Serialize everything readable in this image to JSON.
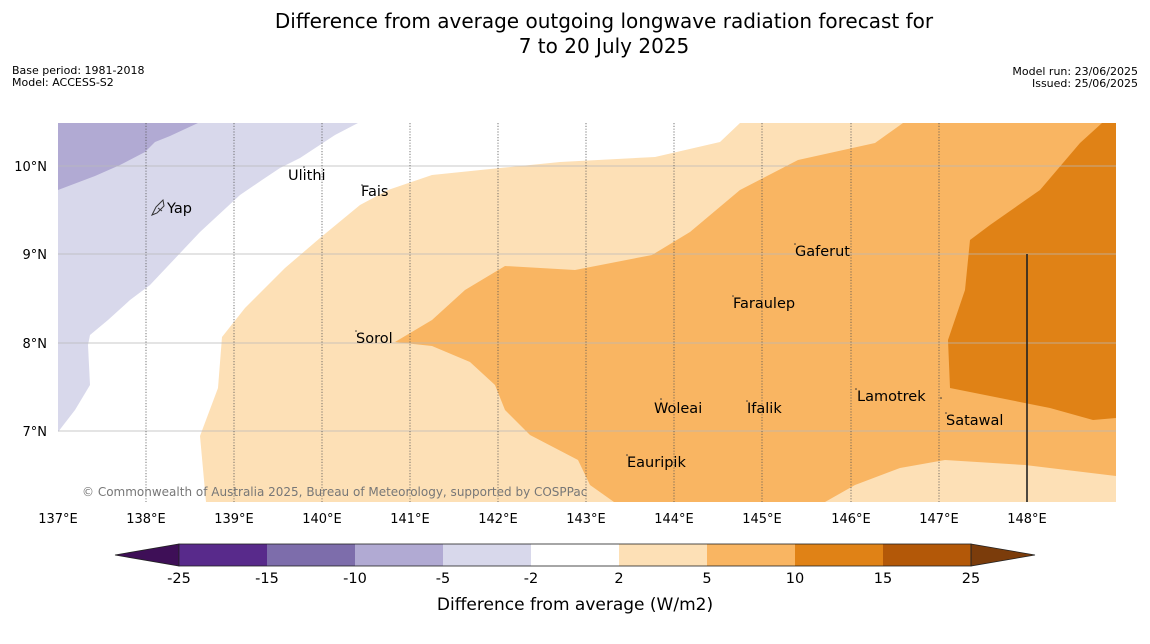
{
  "title": {
    "line1": "Difference from average outgoing longwave radiation forecast for",
    "line2": "7 to 20 July 2025"
  },
  "meta_left": {
    "base_period": "Base period: 1981-2018",
    "model": "Model: ACCESS-S2"
  },
  "meta_right": {
    "model_run": "Model run: 23/06/2025",
    "issued": "Issued: 25/06/2025"
  },
  "map": {
    "lon_ticks": [
      "137°E",
      "138°E",
      "139°E",
      "140°E",
      "141°E",
      "142°E",
      "143°E",
      "144°E",
      "145°E",
      "146°E",
      "147°E",
      "148°E"
    ],
    "lat_ticks": [
      "10°N",
      "9°N",
      "8°N",
      "7°N"
    ],
    "places": [
      {
        "name": "Ulithi"
      },
      {
        "name": "Fais"
      },
      {
        "name": "Yap"
      },
      {
        "name": "Gaferut"
      },
      {
        "name": "Faraulep"
      },
      {
        "name": "Sorol"
      },
      {
        "name": "Lamotrek"
      },
      {
        "name": "Woleai"
      },
      {
        "name": "Ifalik"
      },
      {
        "name": "Satawal"
      },
      {
        "name": "Eauripik"
      }
    ],
    "copyright": "© Commonwealth of Australia 2025, Bureau of Meteorology, supported by COSPPac",
    "colors": {
      "n15_n10": "#7d6dab",
      "n10_n5": "#b1aad3",
      "n5_n2": "#d8d8eb",
      "n2_2": "#ffffff",
      "p2_p5": "#fde0b6",
      "p5_p10": "#f9b562",
      "p10_p15": "#e08216"
    }
  },
  "colorbar": {
    "labels": [
      "-25",
      "-15",
      "-10",
      "-5",
      "-2",
      "2",
      "5",
      "10",
      "15",
      "25"
    ],
    "colors": [
      "#3e0f57",
      "#582a8b",
      "#7d6dab",
      "#b1aad3",
      "#d8d8eb",
      "#ffffff",
      "#fde0b6",
      "#f9b562",
      "#e08216",
      "#b35808",
      "#7b3c0b"
    ],
    "title": "Difference from average (W/m2)"
  }
}
